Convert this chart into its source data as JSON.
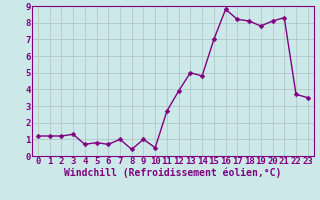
{
  "x": [
    0,
    1,
    2,
    3,
    4,
    5,
    6,
    7,
    8,
    9,
    10,
    11,
    12,
    13,
    14,
    15,
    16,
    17,
    18,
    19,
    20,
    21,
    22,
    23
  ],
  "y": [
    1.2,
    1.2,
    1.2,
    1.3,
    0.7,
    0.8,
    0.7,
    1.0,
    0.4,
    1.0,
    0.5,
    2.7,
    3.9,
    5.0,
    4.8,
    7.0,
    8.8,
    8.2,
    8.1,
    7.8,
    8.1,
    8.3,
    3.7,
    3.5
  ],
  "line_color": "#800080",
  "marker_color": "#800080",
  "bg_color": "#cce8e8",
  "grid_color": "#b0c8c8",
  "border_color": "#800080",
  "xlabel": "Windchill (Refroidissement éolien,°C)",
  "xlim": [
    -0.5,
    23.5
  ],
  "ylim": [
    0,
    9
  ],
  "yticks": [
    0,
    1,
    2,
    3,
    4,
    5,
    6,
    7,
    8,
    9
  ],
  "xticks": [
    0,
    1,
    2,
    3,
    4,
    5,
    6,
    7,
    8,
    9,
    10,
    11,
    12,
    13,
    14,
    15,
    16,
    17,
    18,
    19,
    20,
    21,
    22,
    23
  ],
  "line_width": 1.0,
  "marker_size": 2.5,
  "tick_font_size": 6.5,
  "label_font_size": 7.0
}
